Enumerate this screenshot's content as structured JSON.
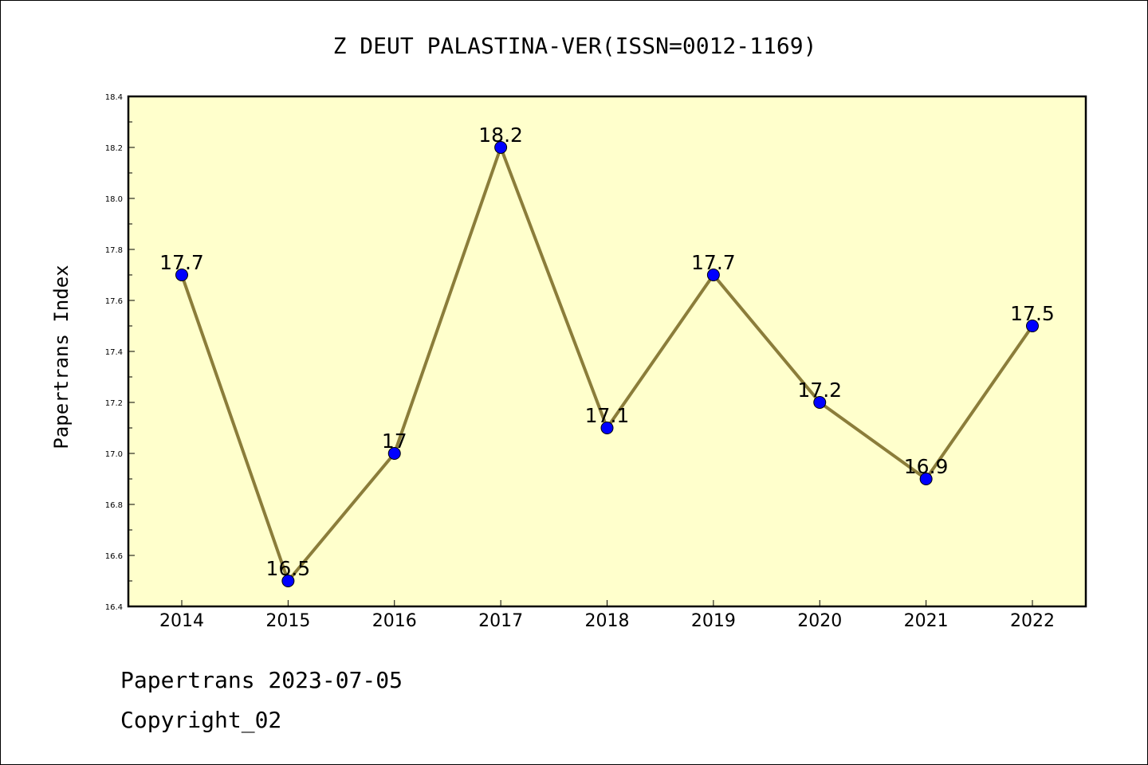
{
  "chart_data": {
    "type": "line",
    "title": "Z DEUT PALASTINA-VER(ISSN=0012-1169)",
    "xlabel": "",
    "ylabel": "Papertrans Index",
    "x": [
      "2014",
      "2015",
      "2016",
      "2017",
      "2018",
      "2019",
      "2020",
      "2021",
      "2022"
    ],
    "series": [
      {
        "values": [
          17.7,
          16.5,
          17.0,
          18.2,
          17.1,
          17.7,
          17.2,
          16.9,
          17.5
        ],
        "labels": [
          "17.7",
          "16.5",
          "17",
          "18.2",
          "17.1",
          "17.7",
          "17.2",
          "16.9",
          "17.5"
        ]
      }
    ],
    "ylim": [
      16.4,
      18.4
    ],
    "yticks": [
      "16.4",
      "16.6",
      "16.8",
      "17.0",
      "17.2",
      "17.4",
      "17.6",
      "17.8",
      "18.0",
      "18.2",
      "18.4"
    ],
    "grid": false,
    "legend": "none",
    "colors": {
      "plot_background": "#ffffcc",
      "line": "#8b7d3a",
      "marker": "#0000ff",
      "axis": "#000000"
    }
  },
  "footer": {
    "date_line": "Papertrans 2023-07-05",
    "copyright_line": "Copyright_02"
  }
}
